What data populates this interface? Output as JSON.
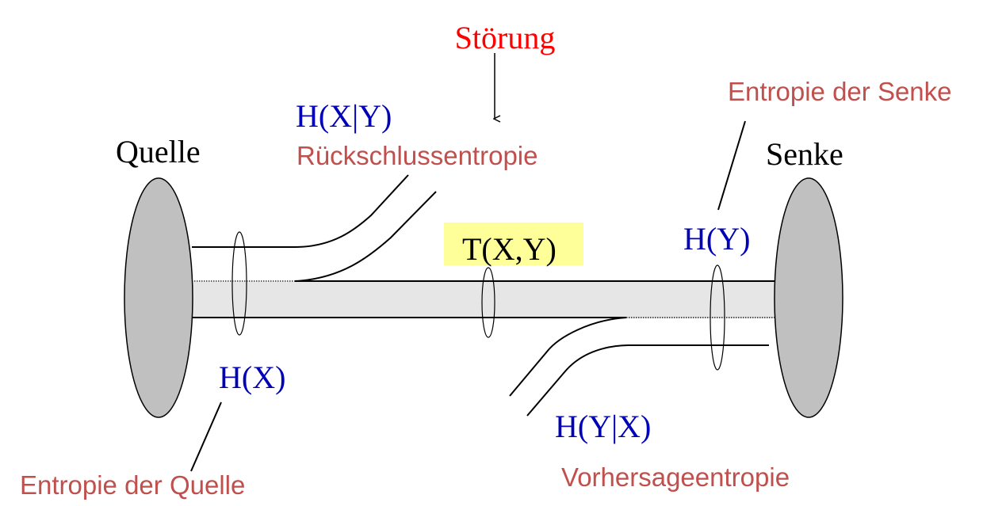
{
  "colors": {
    "disturbance": "#ff0000",
    "entropy_symbol": "#0000b8",
    "description": "#c0504d",
    "endpoint": "#000000",
    "ellipse_fill": "#c0c0c0",
    "channel_fill": "#e6e6e6",
    "highlight": "#ffff99"
  },
  "labels": {
    "disturbance": "Störung",
    "source": "Quelle",
    "sink": "Senke",
    "h_x_given_y": "H(X|Y)",
    "equivocation": "Rückschlussentropie",
    "h_y_given_x": "H(Y|X)",
    "irrelevance": "Vorhersageentropie",
    "transinformation": "T(X,Y)",
    "h_y": "H(Y)",
    "h_x": "H(X)",
    "source_entropy": "Entropie der Quelle",
    "sink_entropy": "Entropie der Senke"
  }
}
